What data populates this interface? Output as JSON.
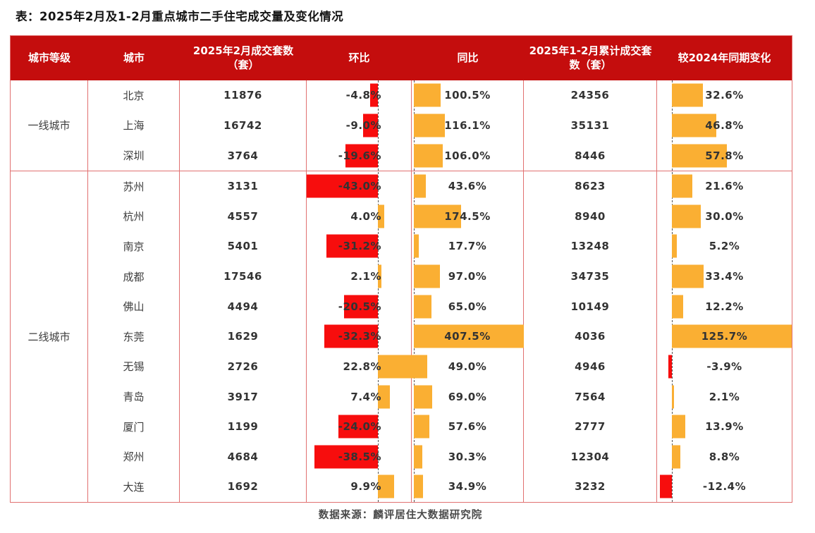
{
  "title": "表：2025年2月及1-2月重点城市二手住宅成交量及变化情况",
  "footer": "数据来源：麟评居住大数据研究院",
  "colors": {
    "header_bg": "#c40d0d",
    "positive_bar": "#faaf33",
    "negative_bar": "#f70d0d",
    "grid_border": "#e17070"
  },
  "header": {
    "tier": "城市等级",
    "city": "城市",
    "feb_volume": "2025年2月成交套数（套）",
    "mom": "环比",
    "yoy": "同比",
    "cum_volume": "2025年1-2月累计成交套数（套）",
    "cum_change": "较2024年同期变化"
  },
  "chart_data": {
    "type": "table",
    "title": "2025年2月及1-2月重点城市二手住宅成交量及变化情况",
    "columns": [
      "城市等级",
      "城市",
      "2025年2月成交套数（套）",
      "环比",
      "同比",
      "2025年1-2月累计成交套数（套）",
      "较2024年同期变化"
    ],
    "bar_columns_note": "环比/同比/较2024年同期变化 rendered as in-cell data bars; negative=red left of dashed zero axis, positive=orange right of dashed zero axis",
    "groups": [
      {
        "tier": "一线城市",
        "rows": [
          {
            "city": "北京",
            "feb": "11876",
            "mom": -4.8,
            "mom_label": "-4.8%",
            "yoy": 100.5,
            "yoy_label": "100.5%",
            "cum": "24356",
            "cum_yoy": 32.6,
            "cum_yoy_label": "32.6%"
          },
          {
            "city": "上海",
            "feb": "16742",
            "mom": -9.0,
            "mom_label": "-9.0%",
            "yoy": 116.1,
            "yoy_label": "116.1%",
            "cum": "35131",
            "cum_yoy": 46.8,
            "cum_yoy_label": "46.8%"
          },
          {
            "city": "深圳",
            "feb": "3764",
            "mom": -19.6,
            "mom_label": "-19.6%",
            "yoy": 106.0,
            "yoy_label": "106.0%",
            "cum": "8446",
            "cum_yoy": 57.8,
            "cum_yoy_label": "57.8%"
          }
        ]
      },
      {
        "tier": "二线城市",
        "rows": [
          {
            "city": "苏州",
            "feb": "3131",
            "mom": -43.0,
            "mom_label": "-43.0%",
            "yoy": 43.6,
            "yoy_label": "43.6%",
            "cum": "8623",
            "cum_yoy": 21.6,
            "cum_yoy_label": "21.6%"
          },
          {
            "city": "杭州",
            "feb": "4557",
            "mom": 4.0,
            "mom_label": "4.0%",
            "yoy": 174.5,
            "yoy_label": "174.5%",
            "cum": "8940",
            "cum_yoy": 30.0,
            "cum_yoy_label": "30.0%"
          },
          {
            "city": "南京",
            "feb": "5401",
            "mom": -31.2,
            "mom_label": "-31.2%",
            "yoy": 17.7,
            "yoy_label": "17.7%",
            "cum": "13248",
            "cum_yoy": 5.2,
            "cum_yoy_label": "5.2%"
          },
          {
            "city": "成都",
            "feb": "17546",
            "mom": 2.1,
            "mom_label": "2.1%",
            "yoy": 97.0,
            "yoy_label": "97.0%",
            "cum": "34735",
            "cum_yoy": 33.4,
            "cum_yoy_label": "33.4%"
          },
          {
            "city": "佛山",
            "feb": "4494",
            "mom": -20.5,
            "mom_label": "-20.5%",
            "yoy": 65.0,
            "yoy_label": "65.0%",
            "cum": "10149",
            "cum_yoy": 12.2,
            "cum_yoy_label": "12.2%"
          },
          {
            "city": "东莞",
            "feb": "1629",
            "mom": -32.3,
            "mom_label": "-32.3%",
            "yoy": 407.5,
            "yoy_label": "407.5%",
            "cum": "4036",
            "cum_yoy": 125.7,
            "cum_yoy_label": "125.7%"
          },
          {
            "city": "无锡",
            "feb": "2726",
            "mom": 22.8,
            "mom_label": "22.8%",
            "yoy": 49.0,
            "yoy_label": "49.0%",
            "cum": "4946",
            "cum_yoy": -3.9,
            "cum_yoy_label": "-3.9%"
          },
          {
            "city": "青岛",
            "feb": "3917",
            "mom": 7.4,
            "mom_label": "7.4%",
            "yoy": 69.0,
            "yoy_label": "69.0%",
            "cum": "7564",
            "cum_yoy": 2.1,
            "cum_yoy_label": "2.1%"
          },
          {
            "city": "厦门",
            "feb": "1199",
            "mom": -24.0,
            "mom_label": "-24.0%",
            "yoy": 57.6,
            "yoy_label": "57.6%",
            "cum": "2777",
            "cum_yoy": 13.9,
            "cum_yoy_label": "13.9%"
          },
          {
            "city": "郑州",
            "feb": "4684",
            "mom": -38.5,
            "mom_label": "-38.5%",
            "yoy": 30.3,
            "yoy_label": "30.3%",
            "cum": "12304",
            "cum_yoy": 8.8,
            "cum_yoy_label": "8.8%"
          },
          {
            "city": "大连",
            "feb": "1692",
            "mom": 9.9,
            "mom_label": "9.9%",
            "yoy": 34.9,
            "yoy_label": "34.9%",
            "cum": "3232",
            "cum_yoy": -12.4,
            "cum_yoy_label": "-12.4%"
          }
        ]
      }
    ]
  }
}
